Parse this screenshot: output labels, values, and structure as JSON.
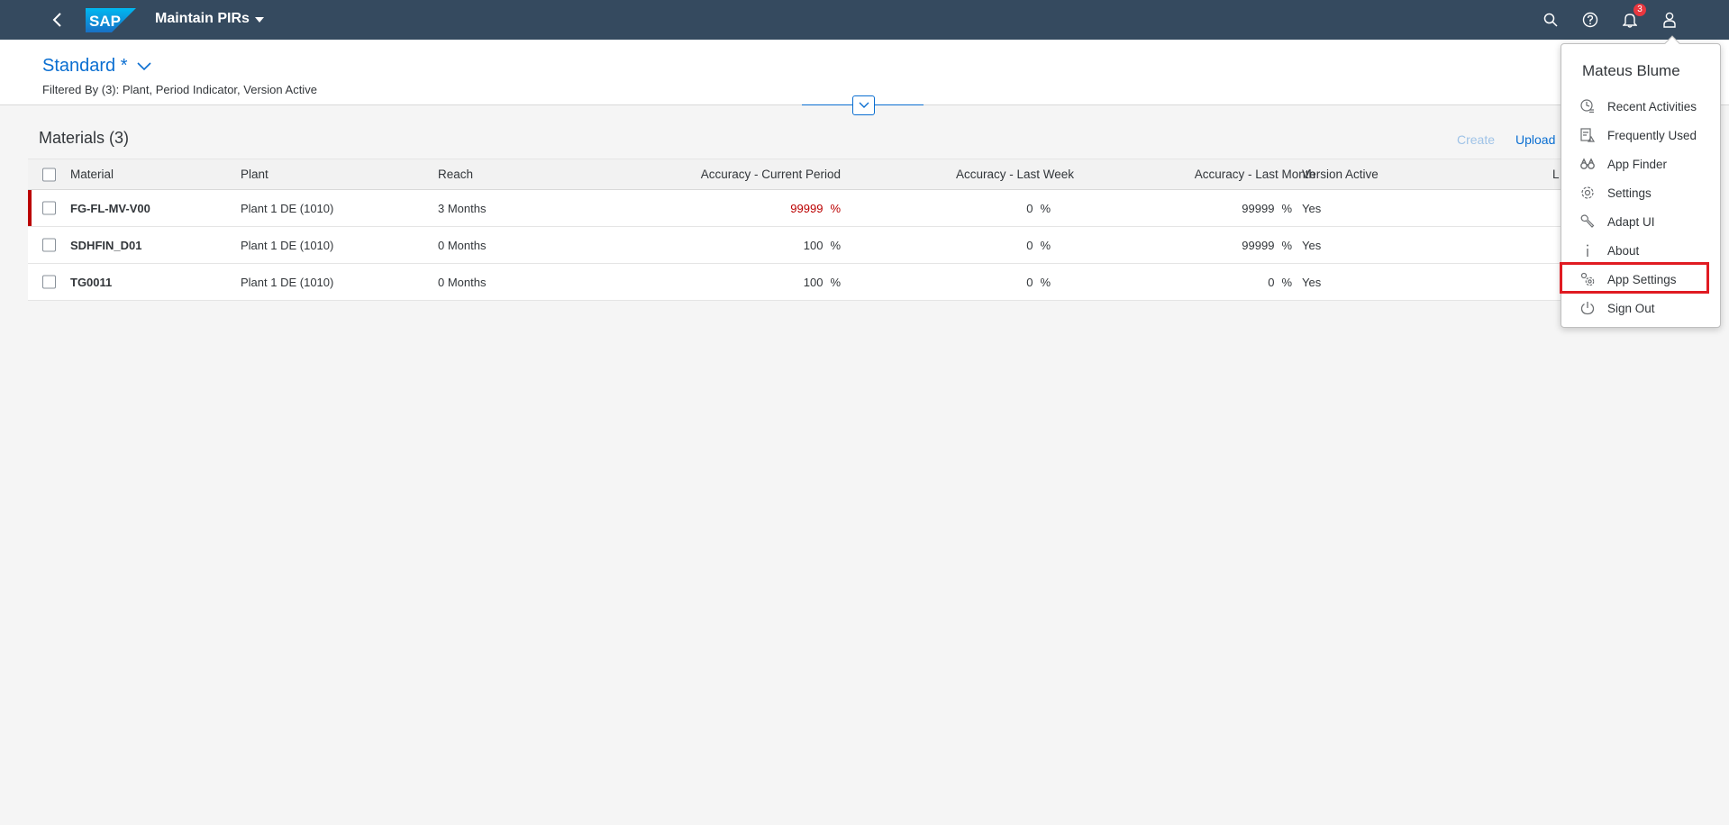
{
  "shell": {
    "app_title": "Maintain PIRs",
    "logo_text": "SAP",
    "notification_count": "3"
  },
  "header": {
    "variant": "Standard *",
    "filter_text": "Filtered By (3): Plant, Period Indicator, Version Active"
  },
  "table": {
    "title": "Materials (3)",
    "create_label": "Create",
    "upload_label": "Upload",
    "columns": [
      "Material",
      "Plant",
      "Reach",
      "Accuracy - Current Period",
      "Accuracy - Last Week",
      "Accuracy - Last Month",
      "Version Active",
      "L"
    ],
    "rows": [
      {
        "material": "FG-FL-MV-V00",
        "plant": "Plant 1 DE (1010)",
        "reach": "3 Months",
        "acc_current": "99999",
        "acc_week": "0",
        "acc_month": "99999",
        "version": "Yes",
        "highlight": true
      },
      {
        "material": "SDHFIN_D01",
        "plant": "Plant 1 DE (1010)",
        "reach": "0 Months",
        "acc_current": "100",
        "acc_week": "0",
        "acc_month": "99999",
        "version": "Yes",
        "highlight": false
      },
      {
        "material": "TG0011",
        "plant": "Plant 1 DE (1010)",
        "reach": "0 Months",
        "acc_current": "100",
        "acc_week": "0",
        "acc_month": "0",
        "version": "Yes",
        "highlight": false
      }
    ],
    "pct_symbol": "%"
  },
  "user_menu": {
    "user_name": "Mateus Blume",
    "items": [
      {
        "label": "Recent Activities",
        "icon": "recent-activities-icon"
      },
      {
        "label": "Frequently Used",
        "icon": "frequently-used-icon"
      },
      {
        "label": "App Finder",
        "icon": "binoculars-icon"
      },
      {
        "label": "Settings",
        "icon": "gear-icon"
      },
      {
        "label": "Adapt UI",
        "icon": "wrench-icon"
      },
      {
        "label": "About",
        "icon": "info-icon"
      },
      {
        "label": "App Settings",
        "icon": "app-settings-icon"
      },
      {
        "label": "Sign Out",
        "icon": "power-icon"
      }
    ]
  },
  "colors": {
    "shell": "#354a5f",
    "accent": "#0a6ed1",
    "error": "#bb0000",
    "annotation": "#e01b22"
  }
}
